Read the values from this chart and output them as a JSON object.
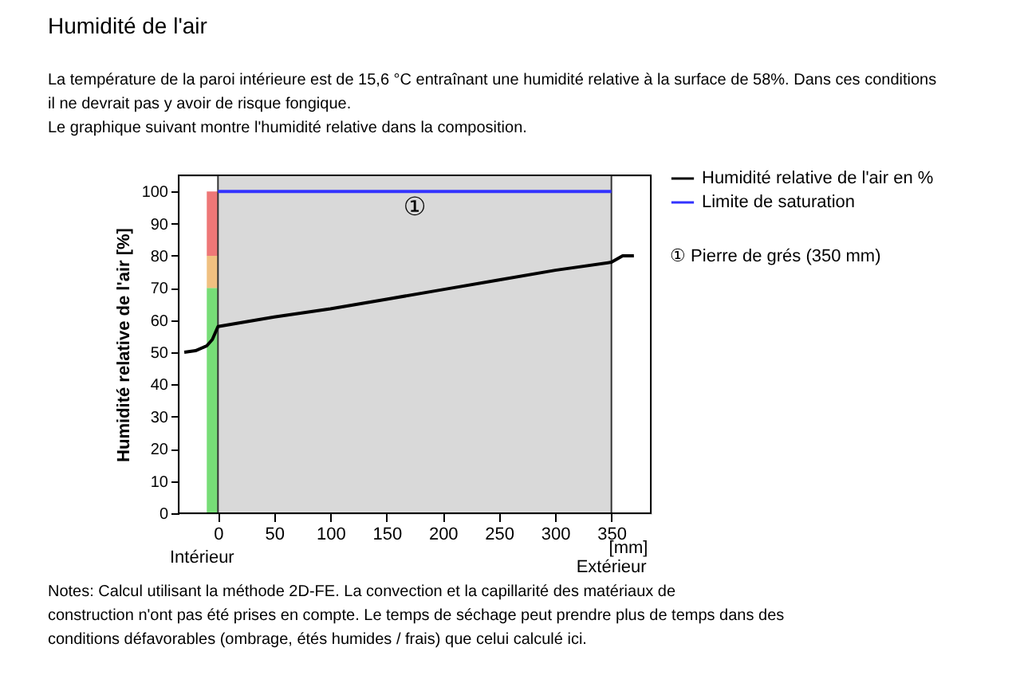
{
  "chart_data": {
    "type": "line",
    "title": "Humidité de l'air",
    "subtitle": "La température de la paroi intérieure est de 15,6 °C entraînant une humidité relative à la surface de 58%. Dans ces conditions\nil ne devrait pas y avoir de risque fongique.\nLe graphique suivant montre l'humidité relative dans la composition.",
    "xlabel": "[mm]",
    "ylabel": "Humidité relative de l'air [%]",
    "series": [
      {
        "name": "Humidité relative de l'air en %",
        "color": "#000000",
        "x": [
          -30,
          -20,
          -10,
          -5,
          0,
          50,
          100,
          150,
          200,
          250,
          300,
          350,
          360,
          370
        ],
        "values": [
          50,
          50.5,
          52,
          54,
          58,
          61,
          63.5,
          66.5,
          69.5,
          72.5,
          75.5,
          78,
          80,
          80
        ]
      },
      {
        "name": "Limite de saturation",
        "color": "#3333ff",
        "x": [
          0,
          350
        ],
        "values": [
          100,
          100
        ]
      },
      {
        "type": "bar",
        "color": "#77dd77",
        "x": [
          -5
        ],
        "values": [
          70
        ]
      },
      {
        "type": "bar",
        "color": "#f0c080",
        "x": [
          -5
        ],
        "values": [
          10
        ]
      },
      {
        "type": "bar",
        "color": "#ee7777",
        "x": [
          -5
        ],
        "values": [
          20
        ]
      }
    ],
    "stacked": true,
    "bands": [
      {
        "axis": "x",
        "from": 0,
        "to": 350,
        "label": "①",
        "color": "#d9d9d9"
      }
    ],
    "xlim": [
      -35,
      385
    ],
    "ylim": [
      0,
      105
    ],
    "xticks": [
      0,
      50,
      100,
      150,
      200,
      250,
      300,
      350
    ],
    "yticks": [
      0,
      10,
      20,
      30,
      40,
      50,
      60,
      70,
      80,
      90,
      100
    ],
    "grid": false,
    "legend": "right",
    "line_style": "solid",
    "annotations": [
      "Intérieur",
      "Extérieur",
      "① Pierre de grés (350 mm)",
      "Notes: Calcul utilisant la méthode 2D-FE. La convection et la capillarité des matériaux de\nconstruction n'ont pas été prises en compte. Le temps de séchage peut prendre plus de temps dans des\nconditions défavorables (ombrage, étés humides / frais) que celui calculé ici."
    ]
  }
}
